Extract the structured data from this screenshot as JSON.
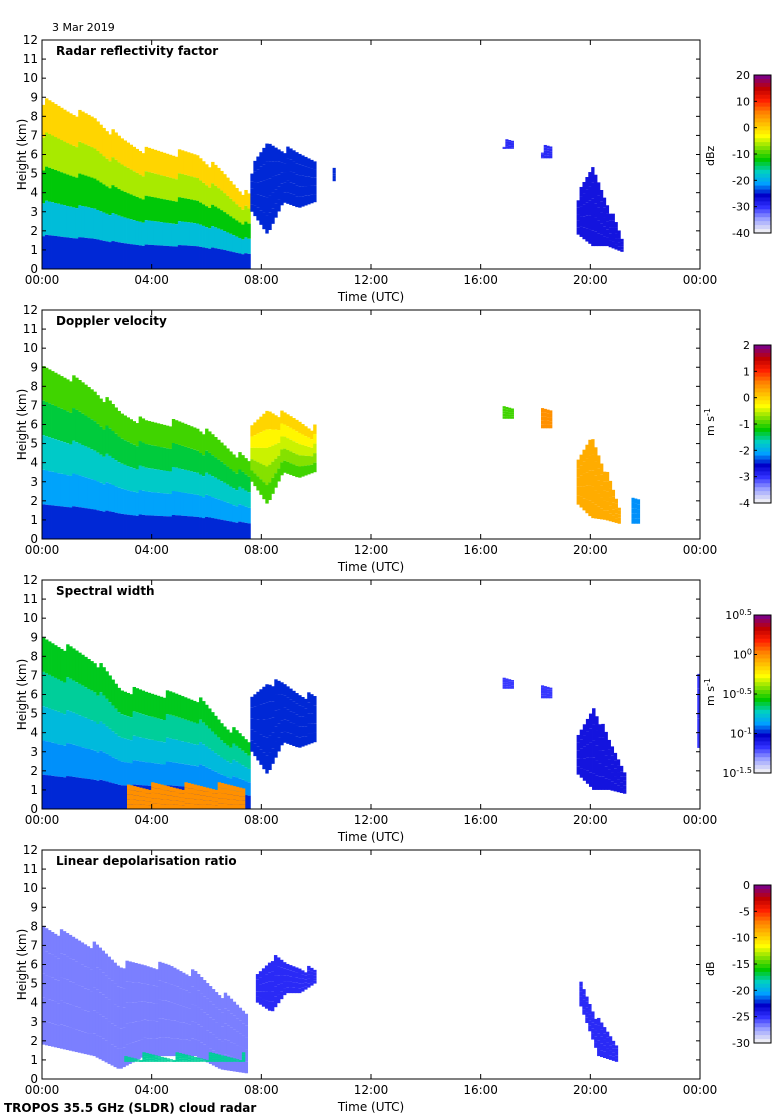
{
  "date": "3 Mar 2019",
  "footer": "TROPOS 35.5 GHz (SLDR) cloud radar",
  "chart_data": [
    {
      "type": "heatmap",
      "title": "Radar reflectivity factor",
      "xlabel": "Time (UTC)",
      "ylabel": "Height (km)",
      "xlim": [
        0,
        24
      ],
      "ylim": [
        0,
        12
      ],
      "x_ticks": [
        "00:00",
        "04:00",
        "08:00",
        "12:00",
        "16:00",
        "20:00",
        "00:00"
      ],
      "y_ticks": [
        "0",
        "1",
        "2",
        "3",
        "4",
        "5",
        "6",
        "7",
        "8",
        "9",
        "10",
        "11",
        "12"
      ],
      "colorbar": {
        "label": "dBz",
        "min": -40,
        "max": 20,
        "ticks": [
          "20",
          "10",
          "0",
          "-10",
          "-20",
          "-30",
          "-40"
        ],
        "scale": "linear"
      },
      "features": [
        {
          "t": [
            0.0,
            7.6
          ],
          "top": [
            8.8,
            8.3,
            7.9,
            6.8,
            6.2,
            6.1,
            6.0,
            5.0,
            3.8
          ],
          "base": 0,
          "value": [
            -25,
            0
          ]
        },
        {
          "t": [
            7.6,
            10.0
          ],
          "top": [
            5.2,
            6.6,
            6.3,
            6.0,
            5.8
          ],
          "base": [
            3.0,
            1.8,
            3.5,
            3.2,
            3.5
          ],
          "value": -25
        },
        {
          "t": [
            10.6,
            10.7
          ],
          "top": 5.5,
          "base": 4.6,
          "value": -25
        },
        {
          "t": [
            16.8,
            17.2
          ],
          "top": 6.6,
          "base": 6.3,
          "value": -30
        },
        {
          "t": [
            18.2,
            18.6
          ],
          "top": 6.3,
          "base": 5.8,
          "value": -30
        },
        {
          "t": [
            19.5,
            21.2
          ],
          "top": [
            3.8,
            5.3,
            3.5,
            1.5
          ],
          "base": [
            1.8,
            1.2,
            1.2,
            0.9
          ],
          "value": -28
        }
      ]
    },
    {
      "type": "heatmap",
      "title": "Doppler velocity",
      "xlabel": "Time (UTC)",
      "ylabel": "Height (km)",
      "xlim": [
        0,
        24
      ],
      "ylim": [
        0,
        12
      ],
      "x_ticks": [
        "00:00",
        "04:00",
        "08:00",
        "12:00",
        "16:00",
        "20:00",
        "00:00"
      ],
      "y_ticks": [
        "0",
        "1",
        "2",
        "3",
        "4",
        "5",
        "6",
        "7",
        "8",
        "9",
        "10",
        "11",
        "12"
      ],
      "colorbar": {
        "label": "m s-1",
        "min": -4,
        "max": 2,
        "ticks": [
          "2",
          "1",
          "0",
          "-1",
          "-2",
          "-3",
          "-4"
        ],
        "scale": "linear"
      },
      "features": [
        {
          "t": [
            0.0,
            7.6
          ],
          "top": [
            8.9,
            8.5,
            7.8,
            6.6,
            6.1,
            6.1,
            5.9,
            5.0,
            4.0
          ],
          "base": 0,
          "value": [
            -2.5,
            -1.0
          ]
        },
        {
          "t": [
            7.6,
            10.0
          ],
          "top": [
            5.8,
            6.8,
            6.5,
            6.2,
            5.8
          ],
          "base": [
            3.0,
            1.8,
            3.5,
            3.2,
            3.5
          ],
          "value": [
            -1.0,
            0.0
          ]
        },
        {
          "t": [
            16.8,
            17.2
          ],
          "top": 6.8,
          "base": 6.3,
          "value": -1.0
        },
        {
          "t": [
            18.2,
            18.6
          ],
          "top": 6.7,
          "base": 5.8,
          "value": 0.5
        },
        {
          "t": [
            19.5,
            21.1
          ],
          "top": [
            4.0,
            5.4,
            3.6,
            1.6
          ],
          "base": [
            1.8,
            1.1,
            1.0,
            0.8
          ],
          "value": 0.3
        },
        {
          "t": [
            21.5,
            21.8
          ],
          "top": 2.0,
          "base": 0.8,
          "value": -2.2
        }
      ]
    },
    {
      "type": "heatmap",
      "title": "Spectral width",
      "xlabel": "Time (UTC)",
      "ylabel": "Height (km)",
      "xlim": [
        0,
        24
      ],
      "ylim": [
        0,
        12
      ],
      "x_ticks": [
        "00:00",
        "04:00",
        "08:00",
        "12:00",
        "16:00",
        "20:00",
        "00:00"
      ],
      "y_ticks": [
        "0",
        "1",
        "2",
        "3",
        "4",
        "5",
        "6",
        "7",
        "8",
        "9",
        "10",
        "11",
        "12"
      ],
      "colorbar": {
        "label": "m s-1",
        "min": -1.5,
        "max": 0.5,
        "ticks": [
          "10^0.5",
          "10^0",
          "10^-0.5",
          "10^-1",
          "10^-1.5"
        ],
        "scale": "log10"
      },
      "features": [
        {
          "t": [
            0.0,
            7.6
          ],
          "top": [
            8.9,
            8.4,
            7.8,
            6.3,
            6.1,
            6.0,
            5.8,
            4.5,
            3.5
          ],
          "base": 0,
          "value": [
            -1.0,
            -0.6
          ]
        },
        {
          "t": [
            3.1,
            7.4
          ],
          "top": 1.2,
          "base": 0,
          "value": 0.0
        },
        {
          "t": [
            7.6,
            10.0
          ],
          "top": [
            5.8,
            6.7,
            6.5,
            6.1,
            5.8
          ],
          "base": [
            3.0,
            1.8,
            3.5,
            3.2,
            3.5
          ],
          "value": -1.0
        },
        {
          "t": [
            16.8,
            17.2
          ],
          "top": 6.8,
          "base": 6.3,
          "value": -1.2
        },
        {
          "t": [
            18.2,
            18.6
          ],
          "top": 6.4,
          "base": 5.8,
          "value": -1.2
        },
        {
          "t": [
            19.5,
            21.3
          ],
          "top": [
            3.8,
            5.4,
            3.5,
            2.0
          ],
          "base": [
            1.8,
            1.0,
            1.0,
            0.8
          ],
          "value": -1.1
        },
        {
          "t": [
            23.9,
            24.0
          ],
          "top": 7.0,
          "base": 3.2,
          "value": -1.2
        }
      ]
    },
    {
      "type": "heatmap",
      "title": "Linear depolarisation ratio",
      "xlabel": "Time (UTC)",
      "ylabel": "Height (km)",
      "xlim": [
        0,
        24
      ],
      "ylim": [
        0,
        12
      ],
      "x_ticks": [
        "00:00",
        "04:00",
        "08:00",
        "12:00",
        "16:00",
        "20:00",
        "00:00"
      ],
      "y_ticks": [
        "0",
        "1",
        "2",
        "3",
        "4",
        "5",
        "6",
        "7",
        "8",
        "9",
        "10",
        "11",
        "12"
      ],
      "colorbar": {
        "label": "dB",
        "min": -30,
        "max": 0,
        "ticks": [
          "0",
          "-5",
          "-10",
          "-15",
          "-20",
          "-25",
          "-30"
        ],
        "scale": "linear"
      },
      "features": [
        {
          "t": [
            0.0,
            7.5
          ],
          "top": [
            8.0,
            7.5,
            7.0,
            6.0,
            6.0,
            5.9,
            5.5,
            4.5,
            3.5
          ],
          "base": [
            1.8,
            1.5,
            1.2,
            0.5,
            1.2,
            1.2,
            1.2,
            0.5,
            0.3
          ],
          "value": -27
        },
        {
          "t": [
            3.0,
            7.4
          ],
          "top": 1.2,
          "base": 0.9,
          "value": -18
        },
        {
          "t": [
            7.8,
            10.0
          ],
          "top": [
            5.5,
            6.4,
            6.0,
            5.9,
            5.6
          ],
          "base": [
            4.0,
            3.5,
            4.5,
            4.5,
            5.0
          ],
          "value": -25
        },
        {
          "t": [
            19.6,
            21.0
          ],
          "top": [
            5.1,
            3.0,
            1.8
          ],
          "base": [
            3.8,
            1.2,
            0.9
          ],
          "value": -25
        }
      ]
    }
  ]
}
